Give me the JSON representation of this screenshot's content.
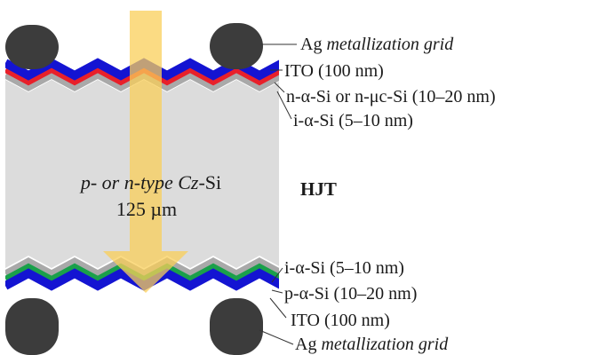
{
  "diagram": {
    "title": "HJT",
    "bulk": {
      "line1": {
        "a": "p- or n-type Cz",
        "b": "-Si"
      },
      "line2": "125 µm"
    },
    "top_labels": [
      {
        "a": "Ag ",
        "b": "metallization grid",
        "c": ""
      },
      {
        "a": "ITO (100 nm)",
        "b": "",
        "c": ""
      },
      {
        "a": "n-α-Si or n-μc",
        "b": "",
        "c": "-Si (10–20 nm)"
      },
      {
        "a": "i-α-Si (5–10 nm)",
        "b": "",
        "c": ""
      }
    ],
    "bottom_labels": [
      {
        "a": "i-α-Si (5–10 nm)",
        "b": "",
        "c": ""
      },
      {
        "a": "p-α-Si (10–20 nm)",
        "b": "",
        "c": ""
      },
      {
        "a": "ITO (100 nm)",
        "b": "",
        "c": ""
      },
      {
        "a": "Ag ",
        "b": "metallization grid",
        "c": ""
      }
    ],
    "colors": {
      "bulk": "#dcdcdc",
      "passivation": "#a9a9a9",
      "n_layer": "#e8202a",
      "p_layer": "#1aa04a",
      "ito": "#1414d2",
      "contact": "#3c3c3c",
      "light_arrow": "#f9cf5a",
      "leader": "#333333"
    }
  }
}
